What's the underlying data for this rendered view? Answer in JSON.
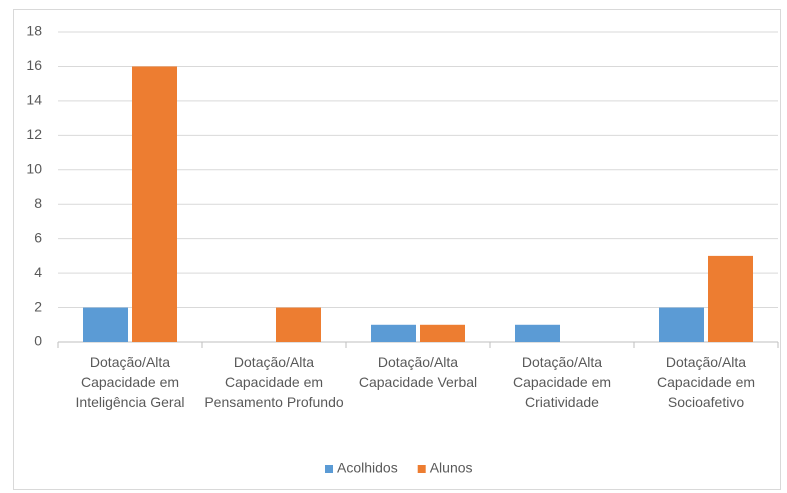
{
  "chart_data": {
    "type": "bar",
    "categories": [
      "Dotação/Alta Capacidade em Inteligência Geral",
      "Dotação/Alta Capacidade em Pensamento Profundo",
      "Dotação/Alta Capacidade Verbal",
      "Dotação/Alta Capacidade em Criatividade",
      "Dotação/Alta Capacidade em Socioafetivo"
    ],
    "series": [
      {
        "name": "Acolhidos",
        "color": "#5b9bd5",
        "values": [
          2,
          0,
          1,
          1,
          2
        ]
      },
      {
        "name": "Alunos",
        "color": "#ed7d31",
        "values": [
          16,
          2,
          1,
          0,
          5
        ]
      }
    ],
    "ylim": [
      0,
      18
    ],
    "yticks": [
      0,
      2,
      4,
      6,
      8,
      10,
      12,
      14,
      16,
      18
    ],
    "grid": true,
    "legend": "bottom"
  }
}
